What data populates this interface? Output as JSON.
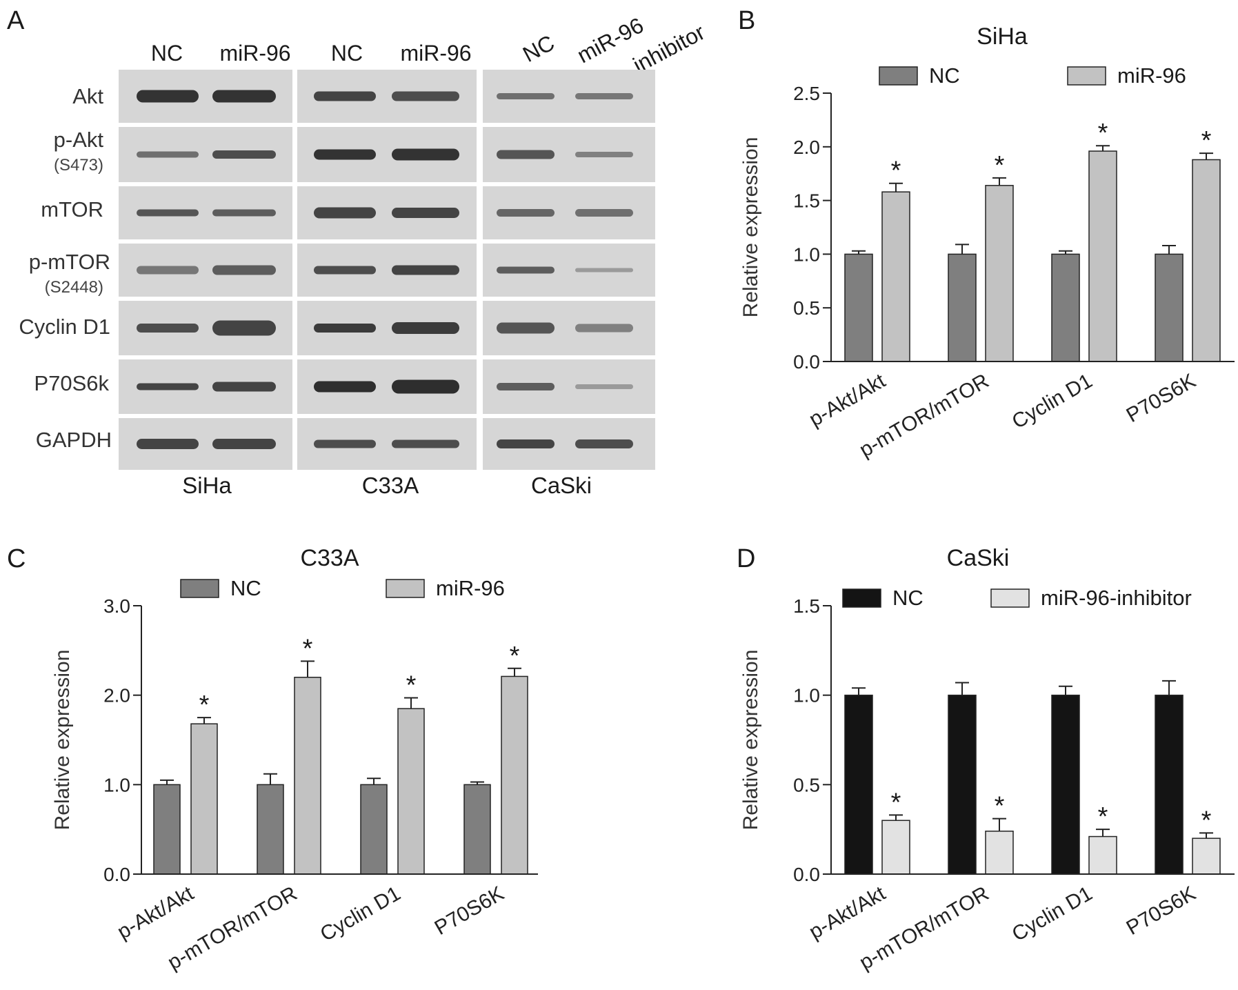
{
  "panel_letters": [
    "A",
    "B",
    "C",
    "D"
  ],
  "blot": {
    "row_labels": [
      {
        "name": "Akt",
        "sub": ""
      },
      {
        "name": "p-Akt",
        "sub": "(S473)"
      },
      {
        "name": "mTOR",
        "sub": ""
      },
      {
        "name": "p-mTOR",
        "sub": "(S2448)"
      },
      {
        "name": "Cyclin D1",
        "sub": ""
      },
      {
        "name": "P70S6k",
        "sub": ""
      },
      {
        "name": "GAPDH",
        "sub": ""
      }
    ],
    "groups": [
      {
        "cell_line": "SiHa",
        "lanes": [
          "NC",
          "miR-96"
        ]
      },
      {
        "cell_line": "C33A",
        "lanes": [
          "NC",
          "miR-96"
        ]
      },
      {
        "cell_line": "CaSki",
        "lanes": [
          "NC",
          "miR-96",
          "inhibitor"
        ]
      }
    ],
    "colors": {
      "blot_background": "#d6d6d6",
      "band": "#2a2a2a"
    }
  },
  "chart_data": [
    {
      "panel": "B",
      "type": "bar",
      "title": "SiHa",
      "ylabel": "Relative expression",
      "xlabel": "",
      "ylim": [
        0,
        2.5
      ],
      "yticks": [
        "0.0",
        "0.5",
        "1.0",
        "1.5",
        "2.0",
        "2.5"
      ],
      "categories": [
        "p-Akt/Akt",
        "p-mTOR/mTOR",
        "Cyclin D1",
        "P70S6K"
      ],
      "series": [
        {
          "name": "NC",
          "values": [
            1.0,
            1.0,
            1.0,
            1.0
          ],
          "errors": [
            0.03,
            0.09,
            0.03,
            0.08
          ],
          "color": "#7f7f7f"
        },
        {
          "name": "miR-96",
          "values": [
            1.58,
            1.64,
            1.96,
            1.88
          ],
          "errors": [
            0.08,
            0.07,
            0.05,
            0.06
          ],
          "color": "#c2c2c2"
        }
      ],
      "significance": {
        "symbol": "*",
        "series": "miR-96",
        "categories": [
          0,
          1,
          2,
          3
        ]
      },
      "legend": "top"
    },
    {
      "panel": "C",
      "type": "bar",
      "title": "C33A",
      "ylabel": "Relative expression",
      "xlabel": "",
      "ylim": [
        0,
        3.0
      ],
      "yticks": [
        "0.0",
        "1.0",
        "2.0",
        "3.0"
      ],
      "categories": [
        "p-Akt/Akt",
        "p-mTOR/mTOR",
        "Cyclin D1",
        "P70S6K"
      ],
      "series": [
        {
          "name": "NC",
          "values": [
            1.0,
            1.0,
            1.0,
            1.0
          ],
          "errors": [
            0.05,
            0.12,
            0.07,
            0.03
          ],
          "color": "#7f7f7f"
        },
        {
          "name": "miR-96",
          "values": [
            1.68,
            2.2,
            1.85,
            2.21
          ],
          "errors": [
            0.07,
            0.18,
            0.12,
            0.09
          ],
          "color": "#c2c2c2"
        }
      ],
      "significance": {
        "symbol": "*",
        "series": "miR-96",
        "categories": [
          0,
          1,
          2,
          3
        ]
      },
      "legend": "top"
    },
    {
      "panel": "D",
      "type": "bar",
      "title": "CaSki",
      "ylabel": "Relative expression",
      "xlabel": "",
      "ylim": [
        0,
        1.5
      ],
      "yticks": [
        "0.0",
        "0.5",
        "1.0",
        "1.5"
      ],
      "categories": [
        "p-Akt/Akt",
        "p-mTOR/mTOR",
        "Cyclin D1",
        "P70S6K"
      ],
      "series": [
        {
          "name": "NC",
          "values": [
            1.0,
            1.0,
            1.0,
            1.0
          ],
          "errors": [
            0.04,
            0.07,
            0.05,
            0.08
          ],
          "color": "#141414"
        },
        {
          "name": "miR-96-inhibitor",
          "values": [
            0.3,
            0.24,
            0.21,
            0.2
          ],
          "errors": [
            0.03,
            0.07,
            0.04,
            0.03
          ],
          "color": "#e2e2e2"
        }
      ],
      "significance": {
        "symbol": "*",
        "series": "miR-96-inhibitor",
        "categories": [
          0,
          1,
          2,
          3
        ]
      },
      "legend": "top"
    }
  ]
}
